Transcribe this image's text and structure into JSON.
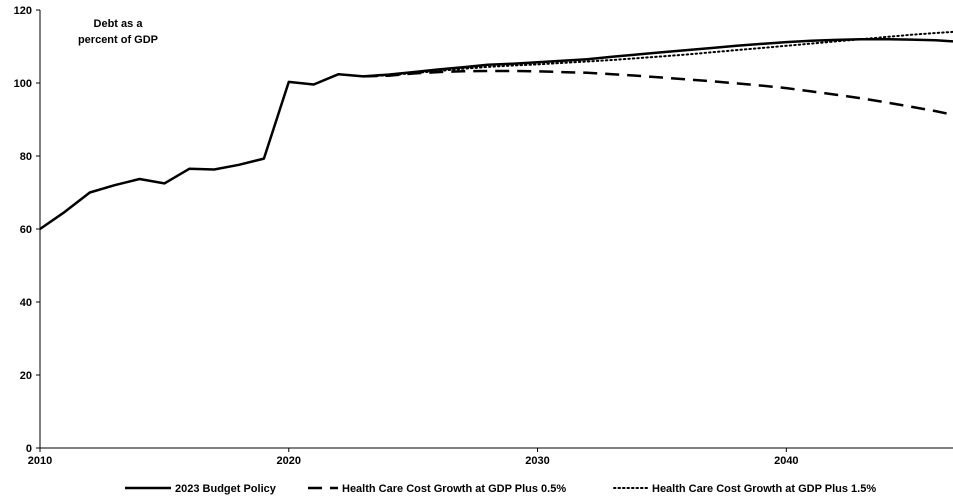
{
  "chart_data": {
    "type": "line",
    "annotation_lines": [
      "Debt as a",
      "percent of GDP"
    ],
    "xlim": [
      2010,
      2046.7
    ],
    "ylim": [
      0,
      120
    ],
    "x_ticks": [
      2010,
      2020,
      2030,
      2040
    ],
    "y_ticks": [
      0,
      20,
      40,
      60,
      80,
      100,
      120
    ],
    "grid": false,
    "legend_position": "bottom",
    "series": [
      {
        "name": "2023 Budget Policy",
        "style": "solid",
        "color": "#000000",
        "x": [
          2010,
          2011,
          2012,
          2013,
          2014,
          2015,
          2016,
          2017,
          2018,
          2019,
          2020,
          2021,
          2022,
          2023,
          2024,
          2025,
          2026,
          2027,
          2028,
          2029,
          2030,
          2031,
          2032,
          2033,
          2034,
          2035,
          2036,
          2037,
          2038,
          2039,
          2040,
          2041,
          2042,
          2043,
          2044,
          2045,
          2046,
          2046.7
        ],
        "y": [
          60,
          64.7,
          70,
          72,
          73.7,
          72.5,
          76.5,
          76.3,
          77.6,
          79.3,
          100.3,
          99.6,
          102.4,
          101.8,
          102.3,
          103,
          103.7,
          104.3,
          105,
          105.3,
          105.7,
          106.1,
          106.5,
          107.2,
          107.8,
          108.4,
          109,
          109.6,
          110.2,
          110.7,
          111.2,
          111.6,
          111.8,
          112,
          112,
          111.9,
          111.7,
          111.4
        ]
      },
      {
        "name": "Health Care Cost Growth at GDP Plus 0.5%",
        "style": "dashed",
        "color": "#000000",
        "x": [
          2023,
          2024,
          2025,
          2026,
          2027,
          2028,
          2029,
          2030,
          2031,
          2032,
          2033,
          2034,
          2035,
          2036,
          2037,
          2038,
          2039,
          2040,
          2041,
          2042,
          2043,
          2044,
          2045,
          2046,
          2046.7
        ],
        "y": [
          101.8,
          102,
          102.6,
          103,
          103.2,
          103.3,
          103.3,
          103.2,
          103,
          102.8,
          102.4,
          102,
          101.5,
          101,
          100.5,
          99.9,
          99.3,
          98.6,
          97.7,
          96.8,
          95.8,
          94.7,
          93.5,
          92.3,
          91.3
        ]
      },
      {
        "name": "Health Care Cost Growth at GDP Plus 1.5%",
        "style": "dotted",
        "color": "#000000",
        "x": [
          2023,
          2024,
          2025,
          2026,
          2027,
          2028,
          2029,
          2030,
          2031,
          2032,
          2033,
          2034,
          2035,
          2036,
          2037,
          2038,
          2039,
          2040,
          2041,
          2042,
          2043,
          2044,
          2045,
          2046,
          2046.7
        ],
        "y": [
          101.8,
          102.1,
          102.7,
          103.3,
          103.9,
          104.4,
          104.8,
          105.1,
          105.5,
          105.9,
          106.3,
          106.8,
          107.3,
          107.8,
          108.4,
          109,
          109.6,
          110.2,
          110.8,
          111.4,
          112,
          112.6,
          113.2,
          113.7,
          114
        ]
      }
    ]
  }
}
